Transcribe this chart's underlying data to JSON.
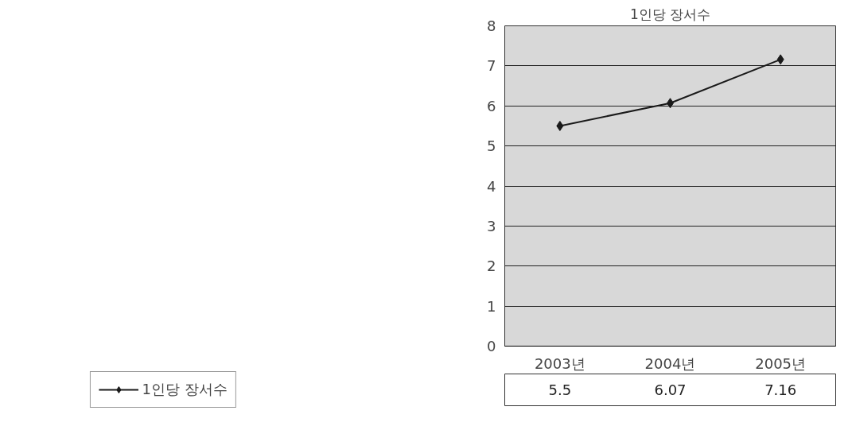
{
  "chart_data": {
    "type": "line",
    "title": "1인당 장서수",
    "categories": [
      "2003년",
      "2004년",
      "2005년"
    ],
    "series": [
      {
        "name": "1인당 장서수",
        "color": "#1a1a1a",
        "values": [
          5.5,
          6.07,
          7.16
        ]
      }
    ],
    "ylim": [
      0,
      8
    ],
    "yticks": [
      0,
      1,
      2,
      3,
      4,
      5,
      6,
      7,
      8
    ],
    "grid": "y",
    "marker": "diamond",
    "data_labels": true,
    "legend": "bottom left"
  }
}
